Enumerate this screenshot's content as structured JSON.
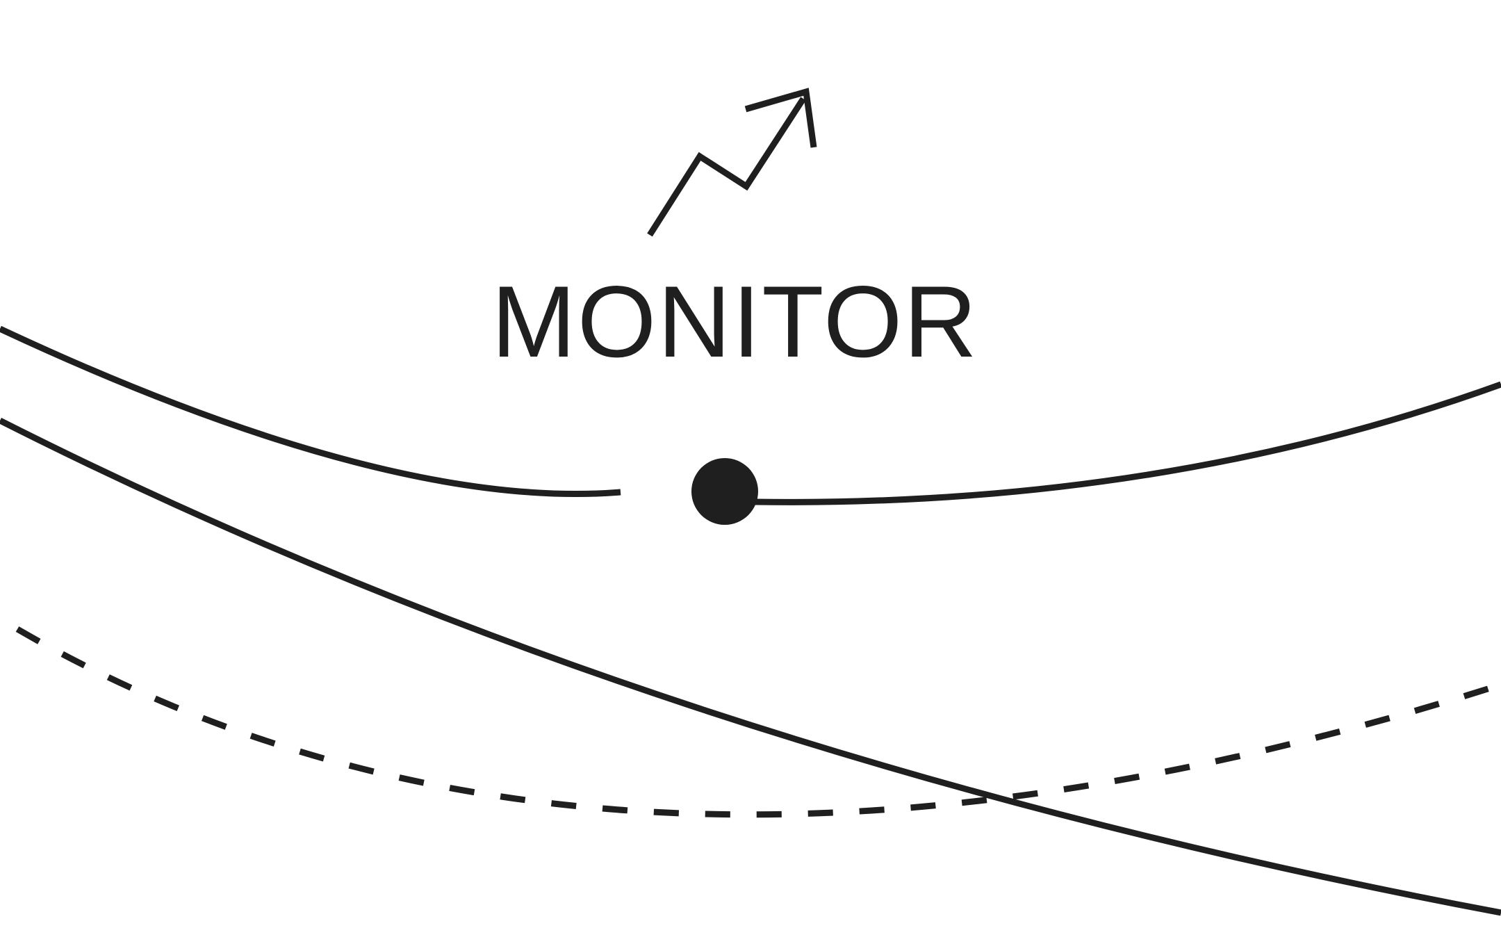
{
  "label": {
    "text": "MONITOR"
  },
  "colors": {
    "ink": "#1f1f1f",
    "background": "#ffffff"
  },
  "icons": {
    "arrow": "trend-up-arrow-icon",
    "marker": "dot-marker-icon"
  }
}
